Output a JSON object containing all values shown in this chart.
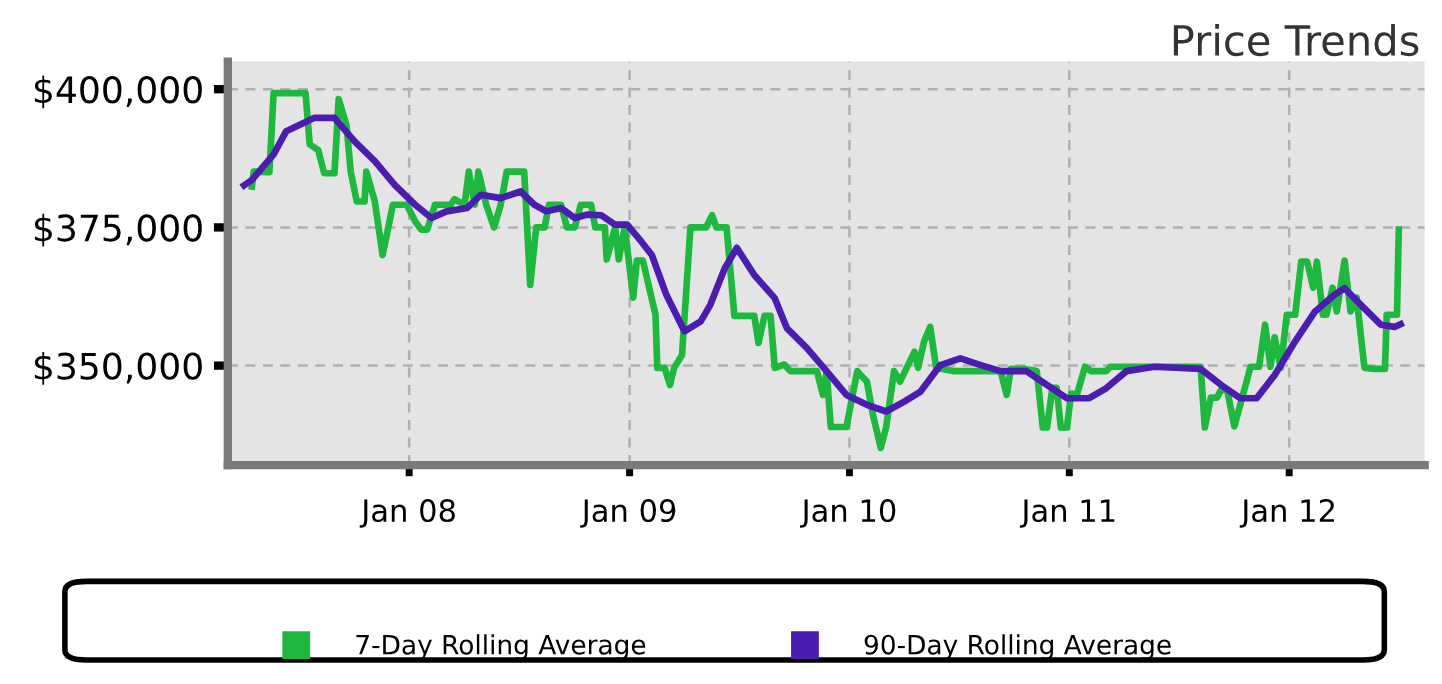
{
  "chart_data": {
    "type": "line",
    "title": "Price Trends",
    "xlim": [
      "2007-03-06",
      "2012-08-13"
    ],
    "ylim": [
      332000,
      405000
    ],
    "xticks": [
      {
        "value": "2008-01-01",
        "label": "Jan 08"
      },
      {
        "value": "2009-01-01",
        "label": "Jan 09"
      },
      {
        "value": "2010-01-01",
        "label": "Jan 10"
      },
      {
        "value": "2011-01-01",
        "label": "Jan 11"
      },
      {
        "value": "2012-01-01",
        "label": "Jan 12"
      }
    ],
    "yticks": [
      {
        "value": 350000,
        "label": "$350,000"
      },
      {
        "value": 375000,
        "label": "$375,000"
      },
      {
        "value": 400000,
        "label": "$400,000"
      }
    ],
    "grid": true,
    "legend": "bottom",
    "line_style": "solid",
    "marker": "none",
    "series": [
      {
        "name": "7-Day Rolling Average",
        "color": "#1eb83f",
        "x": [
          "2007-04-15",
          "2007-04-18",
          "2007-05-14",
          "2007-05-21",
          "2007-07-13",
          "2007-07-20",
          "2007-08-03",
          "2007-08-13",
          "2007-08-30",
          "2007-09-06",
          "2007-09-19",
          "2007-09-26",
          "2007-10-06",
          "2007-10-19",
          "2007-10-22",
          "2007-11-05",
          "2007-11-18",
          "2007-12-05",
          "2007-12-28",
          "2008-01-11",
          "2008-01-21",
          "2008-01-31",
          "2008-02-13",
          "2008-03-10",
          "2008-03-16",
          "2008-04-02",
          "2008-04-09",
          "2008-04-19",
          "2008-04-25",
          "2008-05-08",
          "2008-05-21",
          "2008-06-01",
          "2008-06-11",
          "2008-07-10",
          "2008-07-20",
          "2008-07-30",
          "2008-08-13",
          "2008-08-20",
          "2008-09-09",
          "2008-09-19",
          "2008-10-02",
          "2008-10-12",
          "2008-10-29",
          "2008-11-05",
          "2008-11-21",
          "2008-11-24",
          "2008-12-08",
          "2008-12-14",
          "2008-12-24",
          "2009-01-07",
          "2009-01-13",
          "2009-01-23",
          "2009-02-13",
          "2009-02-16",
          "2009-02-28",
          "2009-03-09",
          "2009-03-16",
          "2009-03-29",
          "2009-04-12",
          "2009-05-08",
          "2009-05-18",
          "2009-05-25",
          "2009-06-11",
          "2009-06-24",
          "2009-07-27",
          "2009-08-03",
          "2009-08-13",
          "2009-08-23",
          "2009-08-30",
          "2009-09-15",
          "2009-09-25",
          "2009-10-22",
          "2009-11-08",
          "2009-11-18",
          "2009-11-24",
          "2009-12-01",
          "2009-12-27",
          "2010-01-14",
          "2010-01-30",
          "2010-02-09",
          "2010-02-22",
          "2010-03-03",
          "2010-03-16",
          "2010-03-26",
          "2010-04-06",
          "2010-04-19",
          "2010-04-25",
          "2010-05-05",
          "2010-05-15",
          "2010-05-25",
          "2010-06-24",
          "2010-09-09",
          "2010-09-19",
          "2010-09-26",
          "2010-10-19",
          "2010-11-08",
          "2010-11-18",
          "2010-11-25",
          "2010-12-04",
          "2010-12-11",
          "2010-12-18",
          "2010-12-28",
          "2011-01-04",
          "2011-01-14",
          "2011-01-27",
          "2011-02-06",
          "2011-03-03",
          "2011-03-10",
          "2011-08-07",
          "2011-08-14",
          "2011-08-24",
          "2011-09-03",
          "2011-09-10",
          "2011-09-20",
          "2011-10-02",
          "2011-10-29",
          "2011-11-12",
          "2011-11-22",
          "2011-12-01",
          "2011-12-08",
          "2011-12-18",
          "2011-12-28",
          "2012-01-11",
          "2012-01-21",
          "2012-01-31",
          "2012-02-10",
          "2012-02-16",
          "2012-02-26",
          "2012-03-03",
          "2012-03-13",
          "2012-03-20",
          "2012-04-02",
          "2012-04-12",
          "2012-04-22",
          "2012-05-05",
          "2012-05-22",
          "2012-06-08",
          "2012-06-11",
          "2012-06-28",
          "2012-07-01"
        ],
        "values": [
          382400,
          385100,
          385000,
          399300,
          399300,
          390000,
          389000,
          384800,
          384800,
          398200,
          393500,
          385100,
          379700,
          379700,
          385100,
          379700,
          370000,
          379100,
          379100,
          376100,
          374600,
          374600,
          379100,
          379100,
          380100,
          379100,
          385100,
          379100,
          385100,
          379100,
          375000,
          379100,
          385100,
          385100,
          364600,
          375000,
          375000,
          379100,
          379100,
          375000,
          375000,
          379100,
          379100,
          375000,
          375000,
          369200,
          375000,
          369200,
          375000,
          362300,
          369000,
          369000,
          359200,
          349600,
          349600,
          346500,
          349600,
          351900,
          375000,
          375000,
          377200,
          375000,
          375000,
          359000,
          359000,
          354100,
          359000,
          359000,
          349600,
          350200,
          349000,
          349000,
          349000,
          344700,
          349000,
          338900,
          338900,
          349000,
          347100,
          341100,
          335100,
          338900,
          349000,
          347100,
          349600,
          352500,
          349600,
          354400,
          357000,
          349600,
          349000,
          349000,
          344700,
          349400,
          349400,
          349000,
          338800,
          338800,
          346000,
          346000,
          338800,
          338800,
          344900,
          344900,
          349800,
          349000,
          349000,
          349800,
          349800,
          338800,
          344200,
          344200,
          345600,
          345600,
          339000,
          349800,
          349800,
          357400,
          349800,
          355100,
          349600,
          359200,
          359200,
          368800,
          368800,
          364100,
          368800,
          359200,
          359200,
          364100,
          359800,
          369000,
          359800,
          362300,
          349600,
          349400,
          349400,
          359200,
          359200,
          374600
        ]
      },
      {
        "name": "90-Day Rolling Average",
        "color": "#4b1cb0",
        "x": [
          "2007-04-02",
          "2007-04-15",
          "2007-05-21",
          "2007-06-11",
          "2007-07-27",
          "2007-08-30",
          "2007-10-02",
          "2007-11-05",
          "2007-12-08",
          "2008-01-11",
          "2008-02-07",
          "2008-03-03",
          "2008-04-06",
          "2008-04-29",
          "2008-06-01",
          "2008-07-04",
          "2008-07-27",
          "2008-08-16",
          "2008-09-09",
          "2008-10-02",
          "2008-10-22",
          "2008-11-15",
          "2008-12-08",
          "2008-12-28",
          "2009-01-20",
          "2009-02-07",
          "2009-03-03",
          "2009-04-02",
          "2009-04-29",
          "2009-05-15",
          "2009-06-08",
          "2009-06-28",
          "2009-07-27",
          "2009-08-30",
          "2009-09-19",
          "2009-10-22",
          "2009-11-24",
          "2009-12-27",
          "2010-01-30",
          "2010-03-03",
          "2010-04-02",
          "2010-04-29",
          "2010-06-01",
          "2010-07-04",
          "2010-08-07",
          "2010-09-09",
          "2010-10-22",
          "2010-11-25",
          "2010-12-28",
          "2011-02-03",
          "2011-03-03",
          "2011-04-06",
          "2011-05-22",
          "2011-08-07",
          "2011-09-10",
          "2011-10-12",
          "2011-11-08",
          "2011-12-08",
          "2012-01-11",
          "2012-02-13",
          "2012-03-16",
          "2012-04-02",
          "2012-04-29",
          "2012-06-01",
          "2012-06-24",
          "2012-07-04"
        ],
        "values": [
          382600,
          383600,
          388200,
          392400,
          394800,
          394800,
          390600,
          387000,
          382700,
          379100,
          376700,
          377900,
          378500,
          380900,
          380300,
          381500,
          379100,
          377900,
          378500,
          376700,
          377300,
          377200,
          375500,
          375500,
          372500,
          370000,
          362800,
          356200,
          358000,
          361000,
          367600,
          371300,
          366400,
          362200,
          356800,
          353200,
          349000,
          344700,
          342900,
          341700,
          343500,
          345300,
          350100,
          351300,
          350100,
          349000,
          349000,
          346500,
          344100,
          344100,
          345900,
          349000,
          349800,
          349400,
          346500,
          344100,
          344100,
          348300,
          354400,
          359800,
          362800,
          364000,
          361000,
          357400,
          357000,
          357500
        ]
      }
    ]
  }
}
